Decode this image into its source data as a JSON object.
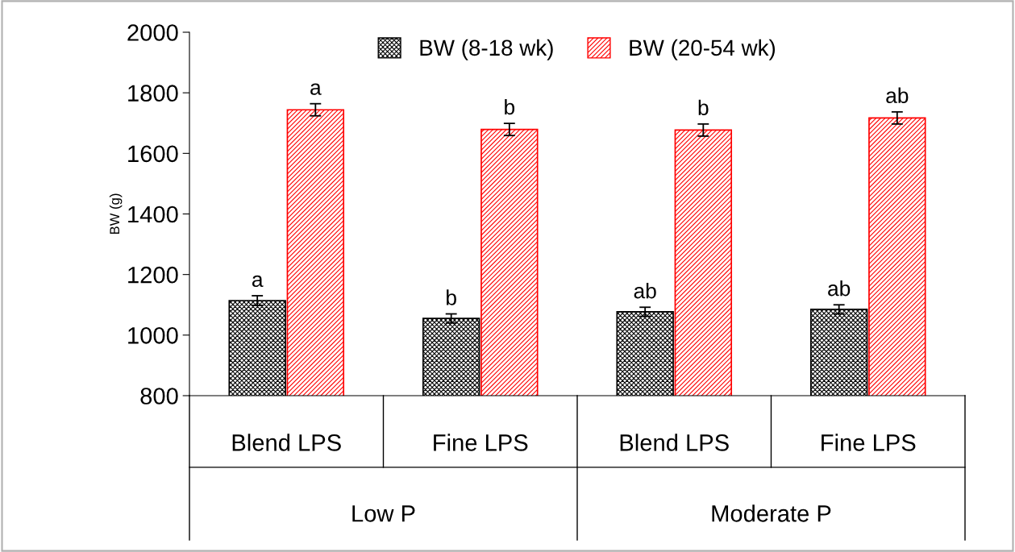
{
  "chart_data": {
    "type": "bar",
    "ylabel": "BW (g)",
    "categories": [
      "Blend LPS",
      "Fine LPS",
      "Blend LPS",
      "Fine LPS"
    ],
    "annotations": [
      "Low P",
      "Moderate P"
    ],
    "series": [
      {
        "name": "BW (8-18 wk)",
        "color": "#000000",
        "values": [
          1114,
          1055,
          1077,
          1085
        ],
        "errors": [
          16,
          15,
          15,
          15
        ],
        "value_labels": [
          "a",
          "b",
          "ab",
          "ab"
        ]
      },
      {
        "name": "BW (20-54 wk)",
        "color": "#ff0000",
        "values": [
          1744,
          1679,
          1677,
          1717
        ],
        "errors": [
          20,
          20,
          20,
          20
        ],
        "value_labels": [
          "a",
          "b",
          "b",
          "ab"
        ]
      }
    ],
    "ylim": [
      800,
      2000
    ],
    "yticks": [
      800,
      1000,
      1200,
      1400,
      1600,
      1800,
      2000
    ],
    "grid": false,
    "legend": "top"
  }
}
